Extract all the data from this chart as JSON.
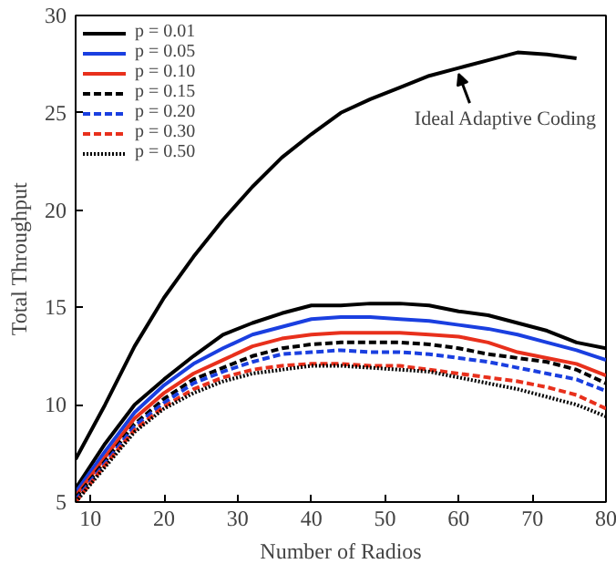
{
  "chart_data": {
    "type": "line",
    "xlabel": "Number of Radios",
    "ylabel": "Total Throughput",
    "x": [
      8,
      12,
      16,
      20,
      24,
      28,
      32,
      36,
      40,
      44,
      48,
      52,
      56,
      60,
      64,
      68,
      72,
      76,
      80
    ],
    "xlim": [
      8,
      80
    ],
    "xticks": [
      10,
      20,
      30,
      40,
      50,
      60,
      70,
      80
    ],
    "ylim": [
      5,
      30
    ],
    "yticks": [
      5,
      10,
      15,
      20,
      25,
      30
    ],
    "grid": false,
    "legend": "top left",
    "marker": "none",
    "annotations": [
      {
        "text": "Ideal Adaptive Coding",
        "x": 60,
        "y": 27.3
      }
    ],
    "series": [
      {
        "name": "p = 0.01",
        "color": "#000000",
        "line_style": "solid",
        "values": [
          5.7,
          8,
          10,
          11.3,
          12.5,
          13.6,
          14.2,
          14.7,
          15.1,
          15.1,
          15.2,
          15.2,
          15.1,
          14.8,
          14.6,
          14.2,
          13.8,
          13.2,
          12.9
        ]
      },
      {
        "name": "p = 0.05",
        "color": "#1a3fe0",
        "line_style": "solid",
        "values": [
          5.5,
          7.6,
          9.6,
          11.0,
          12.1,
          12.9,
          13.6,
          14.0,
          14.4,
          14.5,
          14.5,
          14.4,
          14.3,
          14.1,
          13.9,
          13.6,
          13.2,
          12.8,
          12.3
        ]
      },
      {
        "name": "p = 0.10",
        "color": "#e8301c",
        "line_style": "solid",
        "values": [
          5.3,
          7.3,
          9.3,
          10.6,
          11.6,
          12.3,
          13.0,
          13.4,
          13.6,
          13.7,
          13.7,
          13.7,
          13.6,
          13.5,
          13.2,
          12.7,
          12.4,
          12.1,
          11.5
        ]
      },
      {
        "name": "p = 0.15",
        "color": "#000000",
        "line_style": "dashed",
        "values": [
          5.2,
          7.1,
          9.0,
          10.3,
          11.3,
          11.9,
          12.5,
          12.9,
          13.1,
          13.2,
          13.2,
          13.2,
          13.1,
          12.9,
          12.6,
          12.4,
          12.2,
          11.8,
          11.1
        ]
      },
      {
        "name": "p = 0.20",
        "color": "#1a3fe0",
        "line_style": "dashed",
        "values": [
          5.1,
          7.0,
          8.9,
          10.1,
          11.1,
          11.7,
          12.2,
          12.6,
          12.7,
          12.8,
          12.7,
          12.7,
          12.6,
          12.4,
          12.2,
          11.9,
          11.6,
          11.3,
          10.7
        ]
      },
      {
        "name": "p = 0.30",
        "color": "#e8301c",
        "line_style": "dashed",
        "values": [
          5.0,
          6.9,
          8.7,
          9.9,
          10.8,
          11.4,
          11.8,
          12.0,
          12.1,
          12.1,
          12.0,
          12.0,
          11.8,
          11.6,
          11.4,
          11.2,
          10.9,
          10.5,
          9.8
        ]
      },
      {
        "name": "p = 0.50",
        "color": "#000000",
        "line_style": "dotted",
        "values": [
          5.0,
          6.8,
          8.6,
          9.8,
          10.6,
          11.2,
          11.6,
          11.8,
          12.0,
          12.0,
          11.9,
          11.8,
          11.7,
          11.4,
          11.1,
          10.8,
          10.4,
          10.0,
          9.4
        ]
      },
      {
        "color": "#000000",
        "line_style": "solid",
        "x": [
          8,
          12,
          16,
          20,
          24,
          28,
          32,
          36,
          40,
          44,
          48,
          52,
          56,
          60,
          64,
          68,
          72,
          76
        ],
        "values": [
          7.2,
          10,
          13,
          15.5,
          17.6,
          19.5,
          21.2,
          22.7,
          23.9,
          25.0,
          25.7,
          26.3,
          26.9,
          27.3,
          27.7,
          28.1,
          28.0,
          27.8
        ]
      }
    ]
  }
}
